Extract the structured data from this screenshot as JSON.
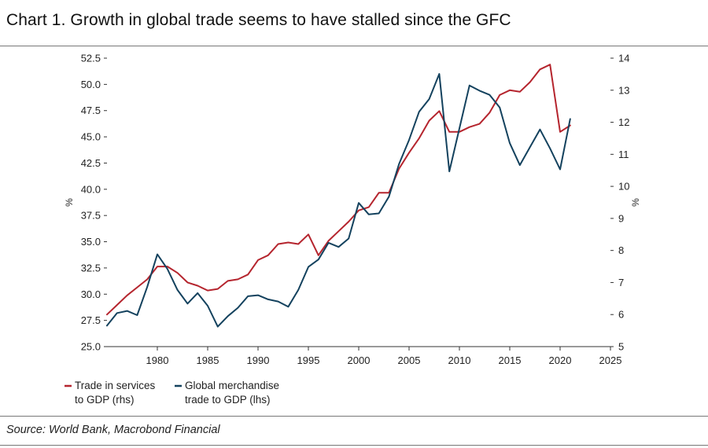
{
  "header": {
    "title": "Chart 1. Growth in global trade seems to have stalled since the GFC"
  },
  "footer": {
    "source": "Source: World Bank, Macrobond Financial"
  },
  "chart_data": {
    "type": "line",
    "title": "Chart 1. Growth in global trade seems to have stalled since the GFC",
    "xlabel": "",
    "ylabel_left": "%",
    "ylabel_right": "%",
    "xlim": [
      1975,
      2025
    ],
    "ylim_left": [
      25.0,
      52.5
    ],
    "ylim_right": [
      5,
      14
    ],
    "x_ticks": [
      "1980",
      "1985",
      "1990",
      "1995",
      "2000",
      "2005",
      "2010",
      "2015",
      "2020",
      "2025"
    ],
    "x_tick_values": [
      1980,
      1985,
      1990,
      1995,
      2000,
      2005,
      2010,
      2015,
      2020,
      2025
    ],
    "y_left_ticks": [
      "25.0",
      "27.5",
      "30.0",
      "32.5",
      "35.0",
      "37.5",
      "40.0",
      "42.5",
      "45.0",
      "47.5",
      "50.0",
      "52.5"
    ],
    "y_left_tick_values": [
      25.0,
      27.5,
      30.0,
      32.5,
      35.0,
      37.5,
      40.0,
      42.5,
      45.0,
      47.5,
      50.0,
      52.5
    ],
    "y_right_ticks": [
      "5",
      "6",
      "7",
      "8",
      "9",
      "10",
      "11",
      "12",
      "13",
      "14"
    ],
    "y_right_tick_values": [
      5,
      6,
      7,
      8,
      9,
      10,
      11,
      12,
      13,
      14
    ],
    "grid": false,
    "legend_position": "bottom-left",
    "series": [
      {
        "name": "Trade in services to GDP (rhs)",
        "legend_line1": "Trade in services",
        "legend_line2": "to GDP (rhs)",
        "axis": "right",
        "color": "#b5252e",
        "x": [
          1975,
          1976,
          1977,
          1978,
          1979,
          1980,
          1981,
          1982,
          1983,
          1984,
          1985,
          1986,
          1987,
          1988,
          1989,
          1990,
          1991,
          1992,
          1993,
          1994,
          1995,
          1996,
          1997,
          1998,
          1999,
          2000,
          2001,
          2002,
          2003,
          2004,
          2005,
          2006,
          2007,
          2008,
          2009,
          2010,
          2011,
          2012,
          2013,
          2014,
          2015,
          2016,
          2017,
          2018,
          2019,
          2020,
          2021
        ],
        "values": [
          6.0,
          6.3,
          6.6,
          6.85,
          7.1,
          7.5,
          7.5,
          7.3,
          7.0,
          6.9,
          6.75,
          6.8,
          7.05,
          7.1,
          7.25,
          7.7,
          7.85,
          8.2,
          8.25,
          8.2,
          8.5,
          7.85,
          8.3,
          8.6,
          8.9,
          9.25,
          9.35,
          9.8,
          9.8,
          10.55,
          11.05,
          11.5,
          12.05,
          12.35,
          11.7,
          11.7,
          11.85,
          11.95,
          12.3,
          12.85,
          13.0,
          12.95,
          13.25,
          13.65,
          13.8,
          11.7,
          11.9
        ]
      },
      {
        "name": "Global merchandise trade to GDP (lhs)",
        "legend_line1": "Global merchandise",
        "legend_line2": "trade to GDP (lhs)",
        "axis": "left",
        "color": "#14425e",
        "x": [
          1975,
          1976,
          1977,
          1978,
          1979,
          1980,
          1981,
          1982,
          1983,
          1984,
          1985,
          1986,
          1987,
          1988,
          1989,
          1990,
          1991,
          1992,
          1993,
          1994,
          1995,
          1996,
          1997,
          1998,
          1999,
          2000,
          2001,
          2002,
          2003,
          2004,
          2005,
          2006,
          2007,
          2008,
          2009,
          2010,
          2011,
          2012,
          2013,
          2014,
          2015,
          2016,
          2017,
          2018,
          2019,
          2020,
          2021
        ],
        "values": [
          27.0,
          28.2,
          28.4,
          28.0,
          30.7,
          33.8,
          32.4,
          30.4,
          29.1,
          30.1,
          28.9,
          26.9,
          27.9,
          28.7,
          29.8,
          29.9,
          29.5,
          29.3,
          28.8,
          30.4,
          32.6,
          33.3,
          34.9,
          34.5,
          35.3,
          38.7,
          37.6,
          37.7,
          39.3,
          42.4,
          44.7,
          47.4,
          48.6,
          51.0,
          41.7,
          45.8,
          49.9,
          49.4,
          49.0,
          47.8,
          44.4,
          42.3,
          44.0,
          45.7,
          43.9,
          41.9,
          46.7
        ]
      }
    ]
  }
}
